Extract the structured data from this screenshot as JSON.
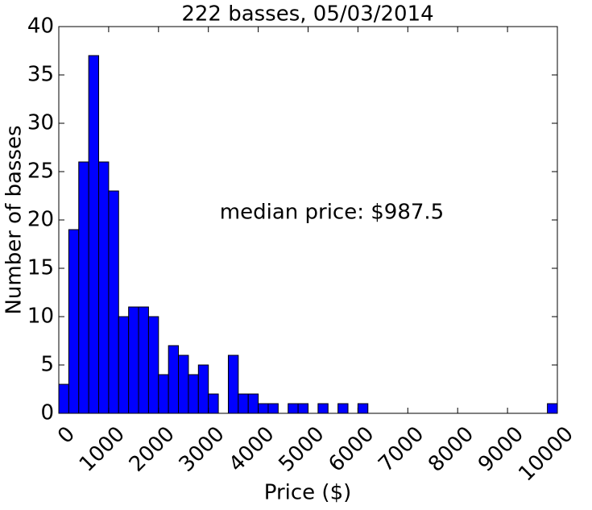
{
  "chart_data": {
    "type": "histogram",
    "title": "222 basses, 05/03/2014",
    "xlabel": "Price ($)",
    "ylabel": "Number of basses",
    "annotation": "median price: $987.5",
    "color": "#0000ff",
    "bins": [
      0,
      200,
      400,
      600,
      800,
      1000,
      1200,
      1400,
      1600,
      1800,
      2000,
      2200,
      2400,
      2600,
      2800,
      3000,
      3200,
      3400,
      3600,
      3800,
      4000,
      4200,
      4400,
      4600,
      4800,
      5000,
      5200,
      5400,
      5600,
      5800,
      6000,
      6200,
      6400,
      6600,
      6800,
      7000,
      7200,
      7400,
      7600,
      7800,
      8000,
      8200,
      8400,
      8600,
      8800,
      9000,
      9200,
      9400,
      9600,
      9800,
      10000
    ],
    "values": [
      3,
      19,
      26,
      37,
      26,
      23,
      10,
      11,
      11,
      10,
      4,
      7,
      6,
      4,
      5,
      2,
      0,
      6,
      2,
      2,
      1,
      1,
      0,
      1,
      1,
      0,
      1,
      0,
      1,
      0,
      1,
      0,
      0,
      0,
      0,
      0,
      0,
      0,
      0,
      0,
      0,
      0,
      0,
      0,
      0,
      0,
      0,
      0,
      0,
      1
    ],
    "xlim": [
      0,
      10000
    ],
    "ylim": [
      0,
      40
    ],
    "xticks": [
      0,
      1000,
      2000,
      3000,
      4000,
      5000,
      6000,
      7000,
      8000,
      9000,
      10000
    ],
    "yticks": [
      0,
      5,
      10,
      15,
      20,
      25,
      30,
      35,
      40
    ]
  }
}
